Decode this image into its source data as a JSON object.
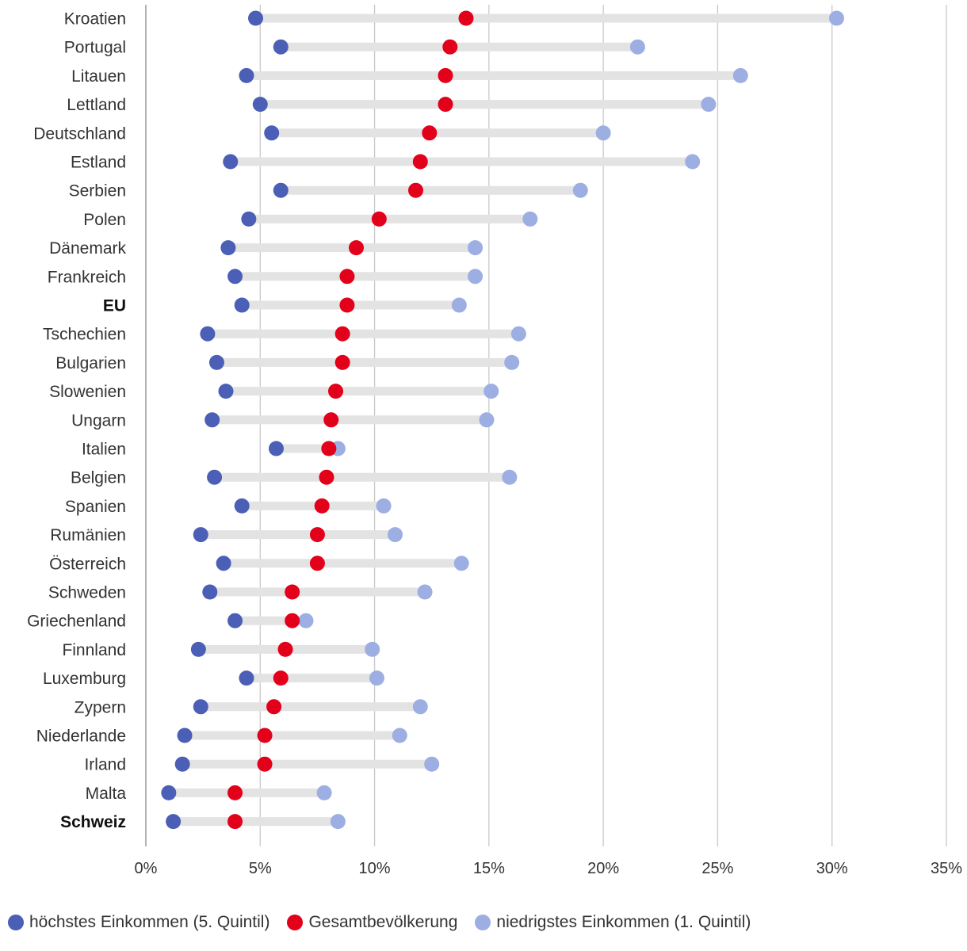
{
  "chart_data": {
    "type": "dot-range",
    "categories": [
      "Kroatien",
      "Portugal",
      "Litauen",
      "Lettland",
      "Deutschland",
      "Estland",
      "Serbien",
      "Polen",
      "Dänemark",
      "Frankreich",
      "EU",
      "Tschechien",
      "Bulgarien",
      "Slowenien",
      "Ungarn",
      "Italien",
      "Belgien",
      "Spanien",
      "Rumänien",
      "Österreich",
      "Schweden",
      "Griechenland",
      "Finnland",
      "Luxemburg",
      "Zypern",
      "Niederlande",
      "Irland",
      "Malta",
      "Schweiz"
    ],
    "bold_categories": [
      "EU",
      "Schweiz"
    ],
    "series": [
      {
        "name": "höchstes Einkommen (5. Quintil)",
        "color": "#4a5fb5",
        "values": [
          4.8,
          5.9,
          4.4,
          5.0,
          5.5,
          3.7,
          5.9,
          4.5,
          3.6,
          3.9,
          4.2,
          2.7,
          3.1,
          3.5,
          2.9,
          5.7,
          3.0,
          4.2,
          2.4,
          3.4,
          2.8,
          3.9,
          2.3,
          4.4,
          2.4,
          1.7,
          1.6,
          1.0,
          1.2
        ]
      },
      {
        "name": "Gesamtbevölkerung",
        "color": "#e2001a",
        "values": [
          14.0,
          13.3,
          13.1,
          13.1,
          12.4,
          12.0,
          11.8,
          10.2,
          9.2,
          8.8,
          8.8,
          8.6,
          8.6,
          8.3,
          8.1,
          8.0,
          7.9,
          7.7,
          7.5,
          7.5,
          6.4,
          6.4,
          6.1,
          5.9,
          5.6,
          5.2,
          5.2,
          3.9,
          3.9
        ]
      },
      {
        "name": "niedrigstes Einkommen (1. Quintil)",
        "color": "#9daee3",
        "values": [
          30.2,
          21.5,
          26.0,
          24.6,
          20.0,
          23.9,
          19.0,
          16.8,
          14.4,
          14.4,
          13.7,
          16.3,
          16.0,
          15.1,
          14.9,
          8.4,
          15.9,
          10.4,
          10.9,
          13.8,
          12.2,
          7.0,
          9.9,
          10.1,
          12.0,
          11.1,
          12.5,
          7.8,
          8.4
        ]
      }
    ],
    "xlim": [
      0,
      35
    ],
    "xticks": [
      0,
      5,
      10,
      15,
      20,
      25,
      30,
      35
    ],
    "xtick_labels": [
      "0%",
      "5%",
      "10%",
      "15%",
      "20%",
      "25%",
      "30%",
      "35%"
    ],
    "grid": "vertical",
    "legend_position": "bottom"
  },
  "legend": {
    "items": [
      {
        "label": "höchstes Einkommen (5. Quintil)",
        "color": "#4a5fb5"
      },
      {
        "label": "Gesamtbevölkerung",
        "color": "#e2001a"
      },
      {
        "label": "niedrigstes Einkommen (1. Quintil)",
        "color": "#9daee3"
      }
    ]
  }
}
